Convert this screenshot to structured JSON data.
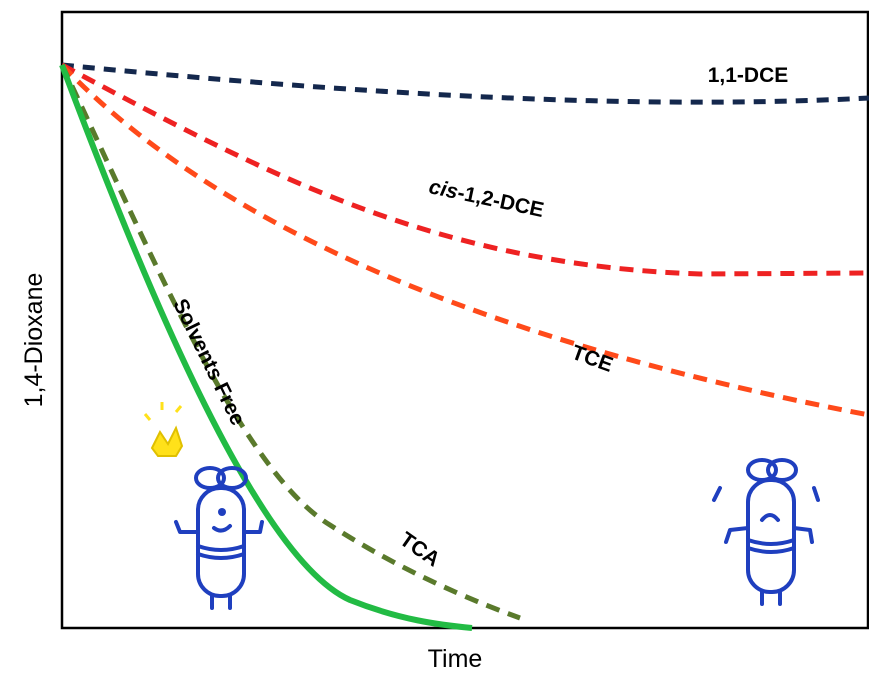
{
  "axes": {
    "x_label": "Time",
    "y_label": "1,4-Dioxane"
  },
  "curves": [
    {
      "label": "1,1-DCE"
    },
    {
      "label_italic": "cis",
      "label": "-1,2-DCE"
    },
    {
      "label": "TCE"
    },
    {
      "label": "TCA"
    },
    {
      "label": "Solvents Free"
    }
  ]
}
